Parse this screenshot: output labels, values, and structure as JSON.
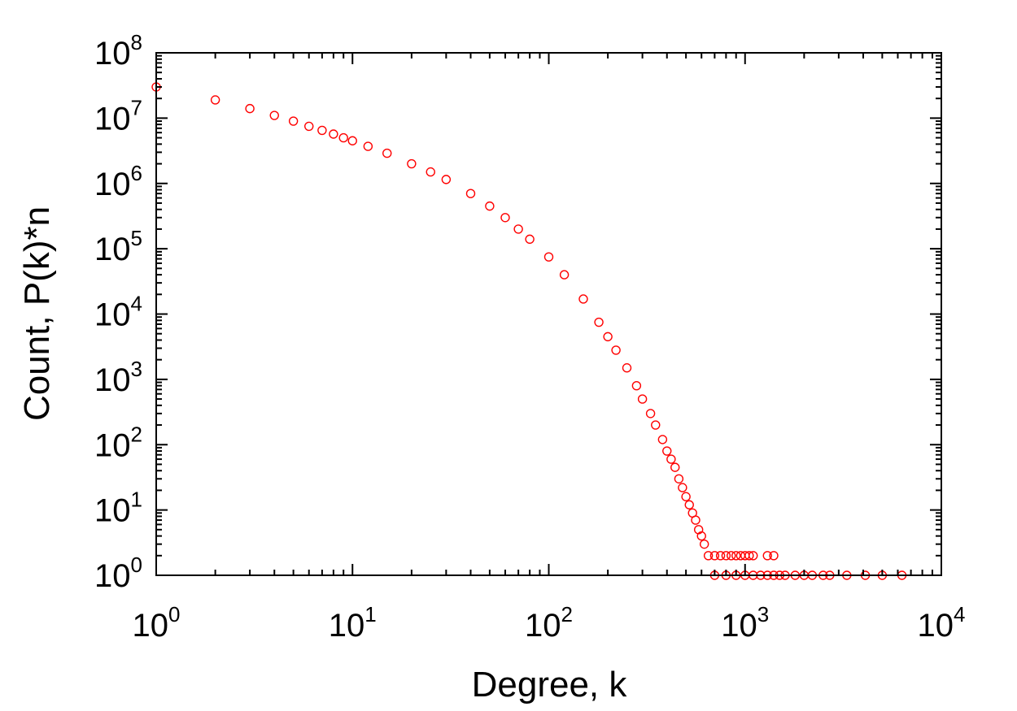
{
  "chart_data": {
    "type": "scatter",
    "xlabel": "Degree, k",
    "ylabel": "Count, P(k)*n",
    "x_scale": "log",
    "y_scale": "log",
    "xlim": [
      1,
      10000
    ],
    "ylim": [
      1,
      100000000
    ],
    "grid": false,
    "x_ticks": [
      {
        "base": "10",
        "exp": "0",
        "value": 1
      },
      {
        "base": "10",
        "exp": "1",
        "value": 10
      },
      {
        "base": "10",
        "exp": "2",
        "value": 100
      },
      {
        "base": "10",
        "exp": "3",
        "value": 1000
      },
      {
        "base": "10",
        "exp": "4",
        "value": 10000
      }
    ],
    "y_ticks": [
      {
        "base": "10",
        "exp": "0",
        "value": 1
      },
      {
        "base": "10",
        "exp": "1",
        "value": 10
      },
      {
        "base": "10",
        "exp": "2",
        "value": 100
      },
      {
        "base": "10",
        "exp": "3",
        "value": 1000
      },
      {
        "base": "10",
        "exp": "4",
        "value": 10000
      },
      {
        "base": "10",
        "exp": "5",
        "value": 100000
      },
      {
        "base": "10",
        "exp": "6",
        "value": 1000000
      },
      {
        "base": "10",
        "exp": "7",
        "value": 10000000
      },
      {
        "base": "10",
        "exp": "8",
        "value": 100000000
      }
    ],
    "marker_color": "#ff0000",
    "marker": "open-circle",
    "series": [
      {
        "points": [
          [
            1,
            30000000
          ],
          [
            2,
            19000000
          ],
          [
            3,
            14000000
          ],
          [
            4,
            11000000
          ],
          [
            5,
            9000000
          ],
          [
            6,
            7500000
          ],
          [
            7,
            6500000
          ],
          [
            8,
            5700000
          ],
          [
            9,
            5000000
          ],
          [
            10,
            4500000
          ],
          [
            12,
            3700000
          ],
          [
            15,
            2900000
          ],
          [
            20,
            2000000
          ],
          [
            25,
            1500000
          ],
          [
            30,
            1150000
          ],
          [
            40,
            700000
          ],
          [
            50,
            450000
          ],
          [
            60,
            300000
          ],
          [
            70,
            200000
          ],
          [
            80,
            140000
          ],
          [
            100,
            75000
          ],
          [
            120,
            40000
          ],
          [
            150,
            17000
          ],
          [
            180,
            7500
          ],
          [
            200,
            4500
          ],
          [
            220,
            2800
          ],
          [
            250,
            1500
          ],
          [
            280,
            800
          ],
          [
            300,
            500
          ],
          [
            330,
            300
          ],
          [
            350,
            200
          ],
          [
            380,
            120
          ],
          [
            400,
            80
          ],
          [
            420,
            60
          ],
          [
            440,
            45
          ],
          [
            460,
            30
          ],
          [
            480,
            22
          ],
          [
            500,
            16
          ],
          [
            520,
            12
          ],
          [
            540,
            9
          ],
          [
            560,
            7
          ],
          [
            580,
            5
          ],
          [
            600,
            4
          ],
          [
            620,
            3
          ],
          [
            650,
            2
          ],
          [
            700,
            2
          ],
          [
            750,
            2
          ],
          [
            800,
            2
          ],
          [
            850,
            2
          ],
          [
            900,
            2
          ],
          [
            950,
            2
          ],
          [
            1000,
            2
          ],
          [
            1050,
            2
          ],
          [
            1100,
            2
          ],
          [
            1300,
            2
          ],
          [
            1400,
            2
          ],
          [
            700,
            1
          ],
          [
            800,
            1
          ],
          [
            900,
            1
          ],
          [
            1000,
            1
          ],
          [
            1100,
            1
          ],
          [
            1200,
            1
          ],
          [
            1300,
            1
          ],
          [
            1400,
            1
          ],
          [
            1500,
            1
          ],
          [
            1600,
            1
          ],
          [
            1800,
            1
          ],
          [
            2000,
            1
          ],
          [
            2200,
            1
          ],
          [
            2500,
            1
          ],
          [
            2700,
            1
          ],
          [
            3300,
            1
          ],
          [
            4100,
            1
          ],
          [
            5000,
            1
          ],
          [
            6300,
            1
          ]
        ]
      }
    ]
  }
}
